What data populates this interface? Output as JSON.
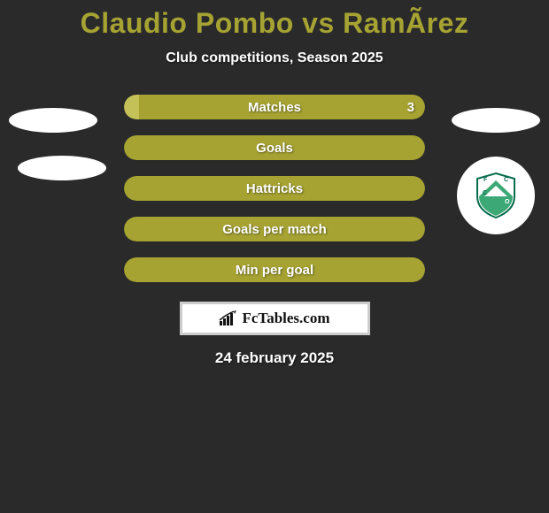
{
  "title": "Claudio Pombo vs RamÃ­rez",
  "subtitle": "Club competitions, Season 2025",
  "date": "24 february 2025",
  "branding": "FcTables.com",
  "colors": {
    "background": "#2a2a2a",
    "bar_primary": "#a6a333",
    "bar_secondary": "#c4c158",
    "title": "#a6a333",
    "text": "#ffffff",
    "badge_green": "#3ba876",
    "badge_dark": "#076b4c"
  },
  "ellipses": {
    "left1": {
      "show": true
    },
    "left2": {
      "show": true
    },
    "right1": {
      "show": true
    }
  },
  "stats": [
    {
      "label": "Matches",
      "left_value": "",
      "right_value": "3",
      "left_pct": 5,
      "right_pct": 95,
      "left_color": "#c4c158",
      "right_color": "#a6a333"
    },
    {
      "label": "Goals",
      "left_value": "",
      "right_value": "",
      "left_pct": 0,
      "right_pct": 100,
      "left_color": "#a6a333",
      "right_color": "#a6a333"
    },
    {
      "label": "Hattricks",
      "left_value": "",
      "right_value": "",
      "left_pct": 0,
      "right_pct": 100,
      "left_color": "#a6a333",
      "right_color": "#a6a333"
    },
    {
      "label": "Goals per match",
      "left_value": "",
      "right_value": "",
      "left_pct": 0,
      "right_pct": 100,
      "left_color": "#a6a333",
      "right_color": "#a6a333"
    },
    {
      "label": "Min per goal",
      "left_value": "",
      "right_value": "",
      "left_pct": 0,
      "right_pct": 100,
      "left_color": "#a6a333",
      "right_color": "#a6a333"
    }
  ]
}
